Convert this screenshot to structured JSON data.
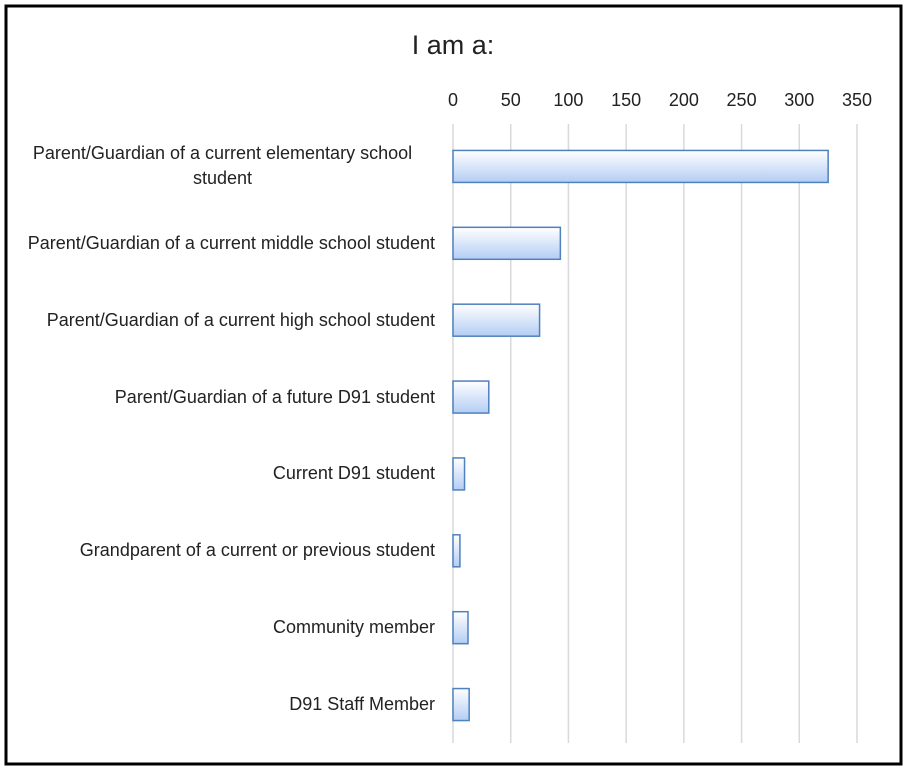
{
  "chart_data": {
    "type": "bar",
    "orientation": "horizontal",
    "title": "I am a:",
    "categories": [
      "Parent/Guardian of a current elementary school student",
      "Parent/Guardian of a current middle school student",
      "Parent/Guardian of a current high school student",
      "Parent/Guardian of a future D91 student",
      "Current D91 student",
      "Grandparent of a current or previous student",
      "Community member",
      "D91 Staff Member"
    ],
    "values": [
      325,
      93,
      75,
      31,
      10,
      6,
      13,
      14
    ],
    "color": "#b3cdf4",
    "edge_color": "#4f81bd",
    "xlim": [
      0,
      350
    ],
    "xticks": [
      0,
      50,
      100,
      150,
      200,
      250,
      300,
      350
    ],
    "grid": true
  }
}
